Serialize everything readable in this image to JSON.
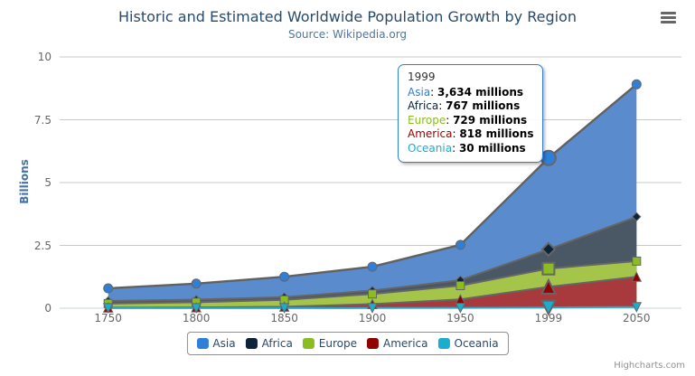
{
  "header": {
    "title": "Historic and Estimated Worldwide Population Growth by Region",
    "subtitle": "Source: Wikipedia.org"
  },
  "credits": {
    "label": "Highcharts.com"
  },
  "chart_data": {
    "type": "area",
    "stacking": "normal",
    "title": "Historic and Estimated Worldwide Population Growth by Region",
    "subtitle": "Source: Wikipedia.org",
    "categories": [
      "1750",
      "1800",
      "1850",
      "1900",
      "1950",
      "1999",
      "2050"
    ],
    "series": [
      {
        "name": "Asia",
        "color": "#2f7ed8",
        "area_color": "#5a8ccd",
        "line_color": "#616161",
        "marker": "circle",
        "values": [
          502,
          635,
          809,
          947,
          1402,
          3634,
          5268
        ]
      },
      {
        "name": "Africa",
        "color": "#0d233a",
        "area_color": "#4a5866",
        "line_color": "#666666",
        "marker": "diamond",
        "values": [
          106,
          107,
          111,
          133,
          221,
          767,
          1766
        ]
      },
      {
        "name": "Europe",
        "color": "#8bbc21",
        "area_color": "#a5c54a",
        "line_color": "#666666",
        "marker": "square",
        "values": [
          163,
          203,
          276,
          408,
          547,
          729,
          628
        ]
      },
      {
        "name": "America",
        "color": "#910000",
        "area_color": "#a83a3e",
        "line_color": "#666666",
        "marker": "triangle",
        "values": [
          18,
          31,
          54,
          156,
          339,
          818,
          1201
        ]
      },
      {
        "name": "Oceania",
        "color": "#1aadce",
        "area_color": "#2ba8c8",
        "line_color": "#2ba8c8",
        "marker": "triangle-down",
        "values": [
          2,
          2,
          2,
          6,
          13,
          30,
          46
        ]
      }
    ],
    "xlabel": "",
    "ylabel": "Billions",
    "yticks": [
      0,
      2.5,
      5,
      7.5,
      10
    ],
    "ylim": [
      0,
      10
    ],
    "value_unit": "millions",
    "grid": true,
    "legend_position": "bottom",
    "hover_index": 5
  },
  "tooltip": {
    "header": "1999",
    "separator": ": ",
    "rows": [
      {
        "label": "Asia",
        "color": "#2f7ed8",
        "value": "3,634 millions"
      },
      {
        "label": "Africa",
        "color": "#0d233a",
        "value": "767 millions"
      },
      {
        "label": "Europe",
        "color": "#8bbc21",
        "value": "729 millions"
      },
      {
        "label": "America",
        "color": "#910000",
        "value": "818 millions"
      },
      {
        "label": "Oceania",
        "color": "#1aadce",
        "value": "30 millions"
      }
    ]
  }
}
